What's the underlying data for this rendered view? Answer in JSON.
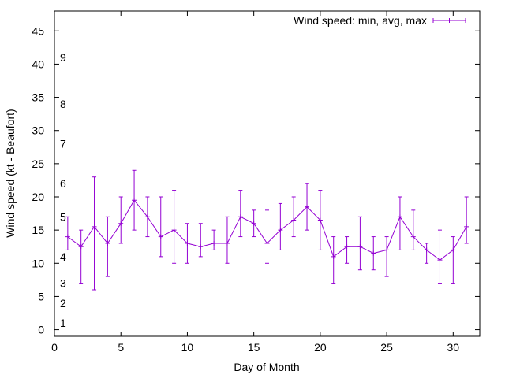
{
  "chart_data": {
    "type": "line",
    "xlabel": "Day of Month",
    "ylabel": "Wind speed (kt - Beaufort)",
    "xlim": [
      0,
      32
    ],
    "ylim": [
      -1,
      48
    ],
    "x_ticks": [
      0,
      5,
      10,
      15,
      20,
      25,
      30
    ],
    "y_ticks": [
      0,
      5,
      10,
      15,
      20,
      25,
      30,
      35,
      40,
      45
    ],
    "grid": false,
    "legend_position": "top-right",
    "series": [
      {
        "name": "Wind speed: min, avg, max",
        "color": "#9400d3",
        "x": [
          1,
          2,
          3,
          4,
          5,
          6,
          7,
          8,
          9,
          10,
          11,
          12,
          13,
          14,
          15,
          16,
          17,
          18,
          19,
          20,
          21,
          22,
          23,
          24,
          25,
          26,
          27,
          28,
          29,
          30,
          31
        ],
        "avg": [
          14,
          12.5,
          15.5,
          13,
          16,
          19.5,
          17,
          14,
          15,
          13,
          12.5,
          13,
          13,
          17,
          16,
          13,
          15,
          16.5,
          18.5,
          16.5,
          11,
          12.5,
          12.5,
          11.5,
          12,
          17,
          14,
          12,
          10.5,
          12,
          15.5
        ],
        "min": [
          12,
          7,
          6,
          8,
          13,
          15,
          14,
          11,
          10,
          10,
          11,
          12,
          10,
          14,
          14,
          10,
          12,
          14,
          15,
          12,
          7,
          10,
          9,
          9,
          8,
          12,
          12,
          10,
          7,
          7,
          13
        ],
        "max": [
          17,
          15,
          23,
          17,
          20,
          24,
          20,
          20,
          21,
          16,
          16,
          15,
          17,
          21,
          18,
          18,
          19,
          20,
          22,
          21,
          14,
          14,
          17,
          14,
          14,
          20,
          18,
          13,
          15,
          14,
          20
        ]
      }
    ],
    "beaufort_labels": [
      {
        "text": "1",
        "y": 1
      },
      {
        "text": "2",
        "y": 4
      },
      {
        "text": "3",
        "y": 7
      },
      {
        "text": "4",
        "y": 11
      },
      {
        "text": "5",
        "y": 17
      },
      {
        "text": "6",
        "y": 22
      },
      {
        "text": "7",
        "y": 28
      },
      {
        "text": "8",
        "y": 34
      },
      {
        "text": "9",
        "y": 41
      }
    ]
  }
}
